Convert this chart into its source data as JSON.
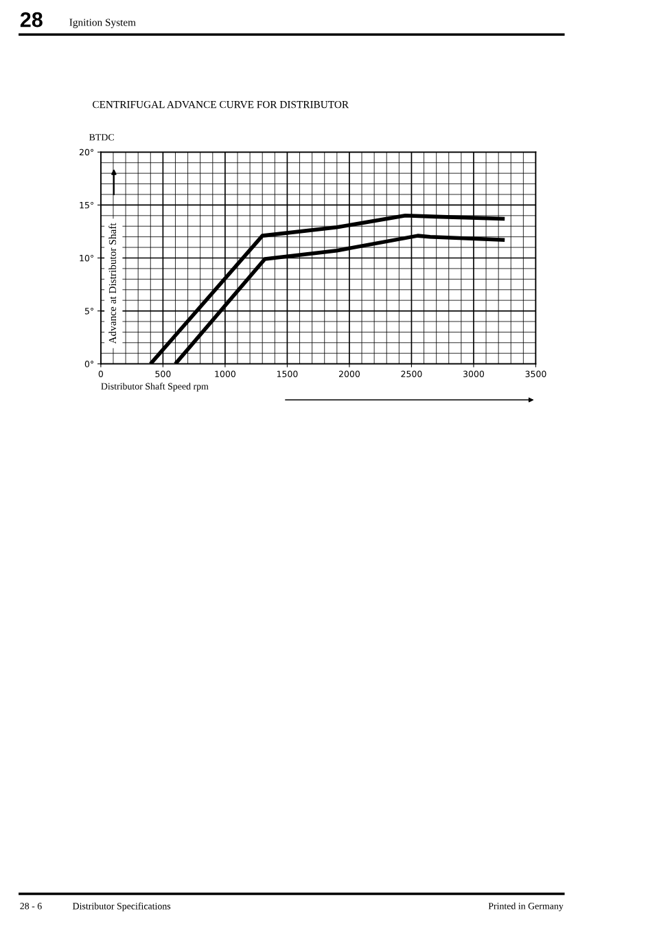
{
  "chart_data": {
    "type": "line",
    "title": "CENTRIFUGAL ADVANCE CURVE FOR DISTRIBUTOR",
    "xlabel": "Distributor Shaft Speed rpm",
    "ylabel": "Advance at Distributor Shaft",
    "annotations": [
      "BTDC",
      "28",
      "Ignition System",
      "28 - 6",
      "Distributor Specifications",
      "Printed in Germany"
    ],
    "series": [
      {
        "color": "#000000",
        "x": [
          400,
          1300,
          1900,
          2450,
          2700,
          3250
        ],
        "values": [
          0,
          12.1,
          12.9,
          14,
          13.9,
          13.7
        ]
      },
      {
        "color": "#000000",
        "x": [
          600,
          1320,
          1900,
          2550,
          2650,
          3250
        ],
        "values": [
          0,
          9.9,
          10.7,
          12.1,
          12.0,
          11.7
        ]
      }
    ],
    "xlim": [
      0,
      3500
    ],
    "xticks": [
      0,
      500,
      1000,
      1500,
      2000,
      2500,
      3000,
      3500
    ],
    "ylim": [
      0,
      20
    ],
    "yticks": [
      {
        "value": 0,
        "label": "0°"
      },
      {
        "value": 5,
        "label": "5°"
      },
      {
        "value": 10,
        "label": "10°"
      },
      {
        "value": 15,
        "label": "15°"
      },
      {
        "value": 20,
        "label": "20°"
      }
    ],
    "grid": true,
    "marker": "none",
    "line_style": "solid",
    "legend": false
  }
}
